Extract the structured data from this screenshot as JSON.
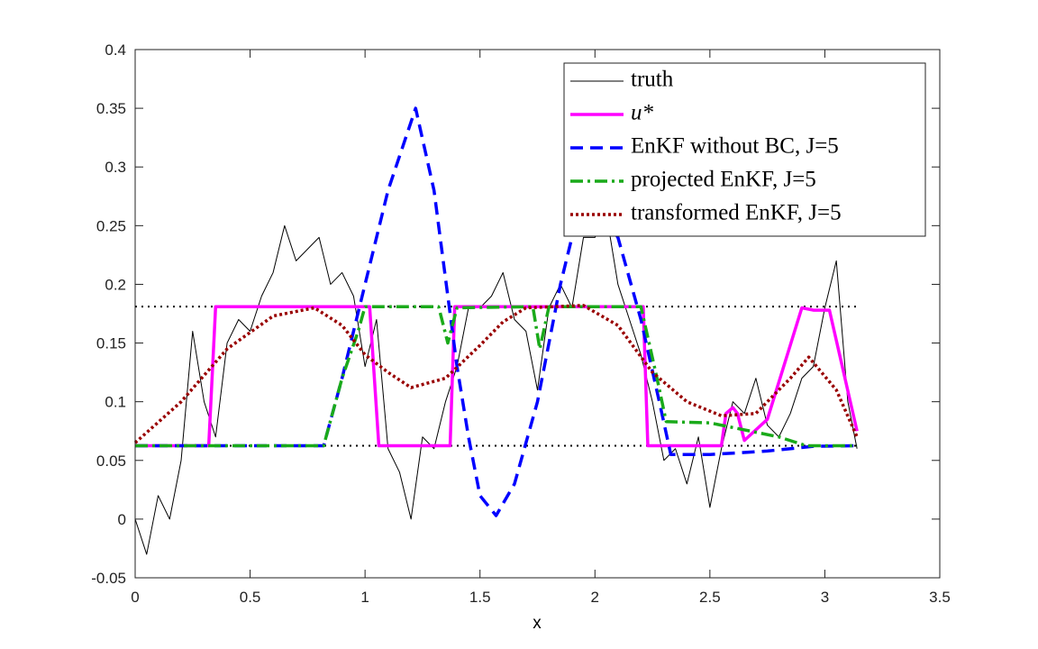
{
  "chart_data": {
    "type": "line",
    "xlabel": "x",
    "xlim": [
      0,
      3.5
    ],
    "ylim": [
      -0.05,
      0.4
    ],
    "xticks": [
      0,
      0.5,
      1,
      1.5,
      2,
      2.5,
      3,
      3.5
    ],
    "yticks": [
      -0.05,
      0,
      0.05,
      0.1,
      0.15,
      0.2,
      0.25,
      0.3,
      0.35,
      0.4
    ],
    "legend": "upper right",
    "hlines": [
      0.181,
      0.0625
    ],
    "hline_color": "#000000",
    "series": [
      {
        "name": "truth",
        "color": "#000000",
        "linestyle": "solid",
        "x": [
          0,
          0.05,
          0.1,
          0.15,
          0.2,
          0.25,
          0.3,
          0.35,
          0.4,
          0.45,
          0.5,
          0.55,
          0.6,
          0.65,
          0.7,
          0.75,
          0.8,
          0.85,
          0.9,
          0.95,
          1.0,
          1.05,
          1.1,
          1.15,
          1.2,
          1.25,
          1.3,
          1.35,
          1.4,
          1.45,
          1.5,
          1.55,
          1.6,
          1.65,
          1.7,
          1.75,
          1.8,
          1.85,
          1.9,
          1.95,
          2.0,
          2.05,
          2.1,
          2.15,
          2.2,
          2.25,
          2.3,
          2.35,
          2.4,
          2.45,
          2.5,
          2.55,
          2.6,
          2.65,
          2.7,
          2.75,
          2.8,
          2.85,
          2.9,
          2.95,
          3.0,
          3.05,
          3.1,
          3.14
        ],
        "values": [
          0.0,
          -0.03,
          0.02,
          0.0,
          0.05,
          0.16,
          0.1,
          0.07,
          0.15,
          0.17,
          0.16,
          0.19,
          0.21,
          0.25,
          0.22,
          0.23,
          0.24,
          0.2,
          0.21,
          0.19,
          0.13,
          0.17,
          0.06,
          0.04,
          0.0,
          0.07,
          0.06,
          0.1,
          0.13,
          0.18,
          0.18,
          0.19,
          0.21,
          0.17,
          0.16,
          0.11,
          0.18,
          0.2,
          0.18,
          0.24,
          0.24,
          0.26,
          0.2,
          0.17,
          0.14,
          0.1,
          0.05,
          0.06,
          0.03,
          0.07,
          0.01,
          0.06,
          0.1,
          0.09,
          0.12,
          0.08,
          0.07,
          0.09,
          0.12,
          0.13,
          0.18,
          0.22,
          0.1,
          0.06
        ]
      },
      {
        "name": "u*",
        "color": "#ff00ff",
        "linestyle": "solid",
        "x": [
          0,
          0.32,
          0.35,
          1.02,
          1.06,
          1.37,
          1.39,
          2.21,
          2.23,
          2.55,
          2.57,
          2.6,
          2.62,
          2.65,
          2.75,
          2.9,
          2.95,
          3.02,
          3.14
        ],
        "values": [
          0.0625,
          0.0625,
          0.181,
          0.181,
          0.0625,
          0.0625,
          0.181,
          0.181,
          0.0625,
          0.0625,
          0.09,
          0.095,
          0.09,
          0.067,
          0.085,
          0.18,
          0.178,
          0.178,
          0.075
        ]
      },
      {
        "name": "EnKF without BC, J=5",
        "color": "#0000ff",
        "linestyle": "dashed",
        "x": [
          0,
          0.82,
          0.9,
          1.0,
          1.1,
          1.22,
          1.3,
          1.4,
          1.45,
          1.5,
          1.57,
          1.65,
          1.75,
          1.85,
          1.9,
          2.0,
          2.1,
          2.2,
          2.28,
          2.33,
          2.5,
          2.75,
          2.95,
          3.14
        ],
        "values": [
          0.0625,
          0.0625,
          0.12,
          0.2,
          0.28,
          0.35,
          0.28,
          0.13,
          0.07,
          0.02,
          0.003,
          0.03,
          0.1,
          0.2,
          0.24,
          0.27,
          0.24,
          0.17,
          0.1,
          0.055,
          0.055,
          0.058,
          0.062,
          0.0625
        ]
      },
      {
        "name": "projected EnKF, J=5",
        "color": "#1aaa1a",
        "linestyle": "dashdot",
        "x": [
          0,
          0.82,
          0.9,
          0.97,
          1.0,
          1.32,
          1.36,
          1.4,
          1.73,
          1.76,
          1.8,
          2.2,
          2.27,
          2.31,
          2.5,
          2.6,
          2.8,
          2.92,
          3.14
        ],
        "values": [
          0.0625,
          0.0625,
          0.12,
          0.16,
          0.181,
          0.181,
          0.15,
          0.18,
          0.181,
          0.145,
          0.181,
          0.181,
          0.12,
          0.083,
          0.082,
          0.078,
          0.07,
          0.0625,
          0.0625
        ]
      },
      {
        "name": "transformed EnKF, J=5",
        "color": "#990000",
        "linestyle": "dotted",
        "x": [
          0,
          0.2,
          0.4,
          0.6,
          0.78,
          0.9,
          1.0,
          1.1,
          1.2,
          1.35,
          1.5,
          1.6,
          1.7,
          1.95,
          2.1,
          2.25,
          2.4,
          2.55,
          2.7,
          2.85,
          2.93,
          3.05,
          3.14
        ],
        "values": [
          0.065,
          0.1,
          0.145,
          0.173,
          0.18,
          0.165,
          0.14,
          0.125,
          0.112,
          0.12,
          0.148,
          0.168,
          0.18,
          0.182,
          0.165,
          0.125,
          0.1,
          0.088,
          0.09,
          0.12,
          0.138,
          0.11,
          0.07
        ]
      }
    ]
  }
}
